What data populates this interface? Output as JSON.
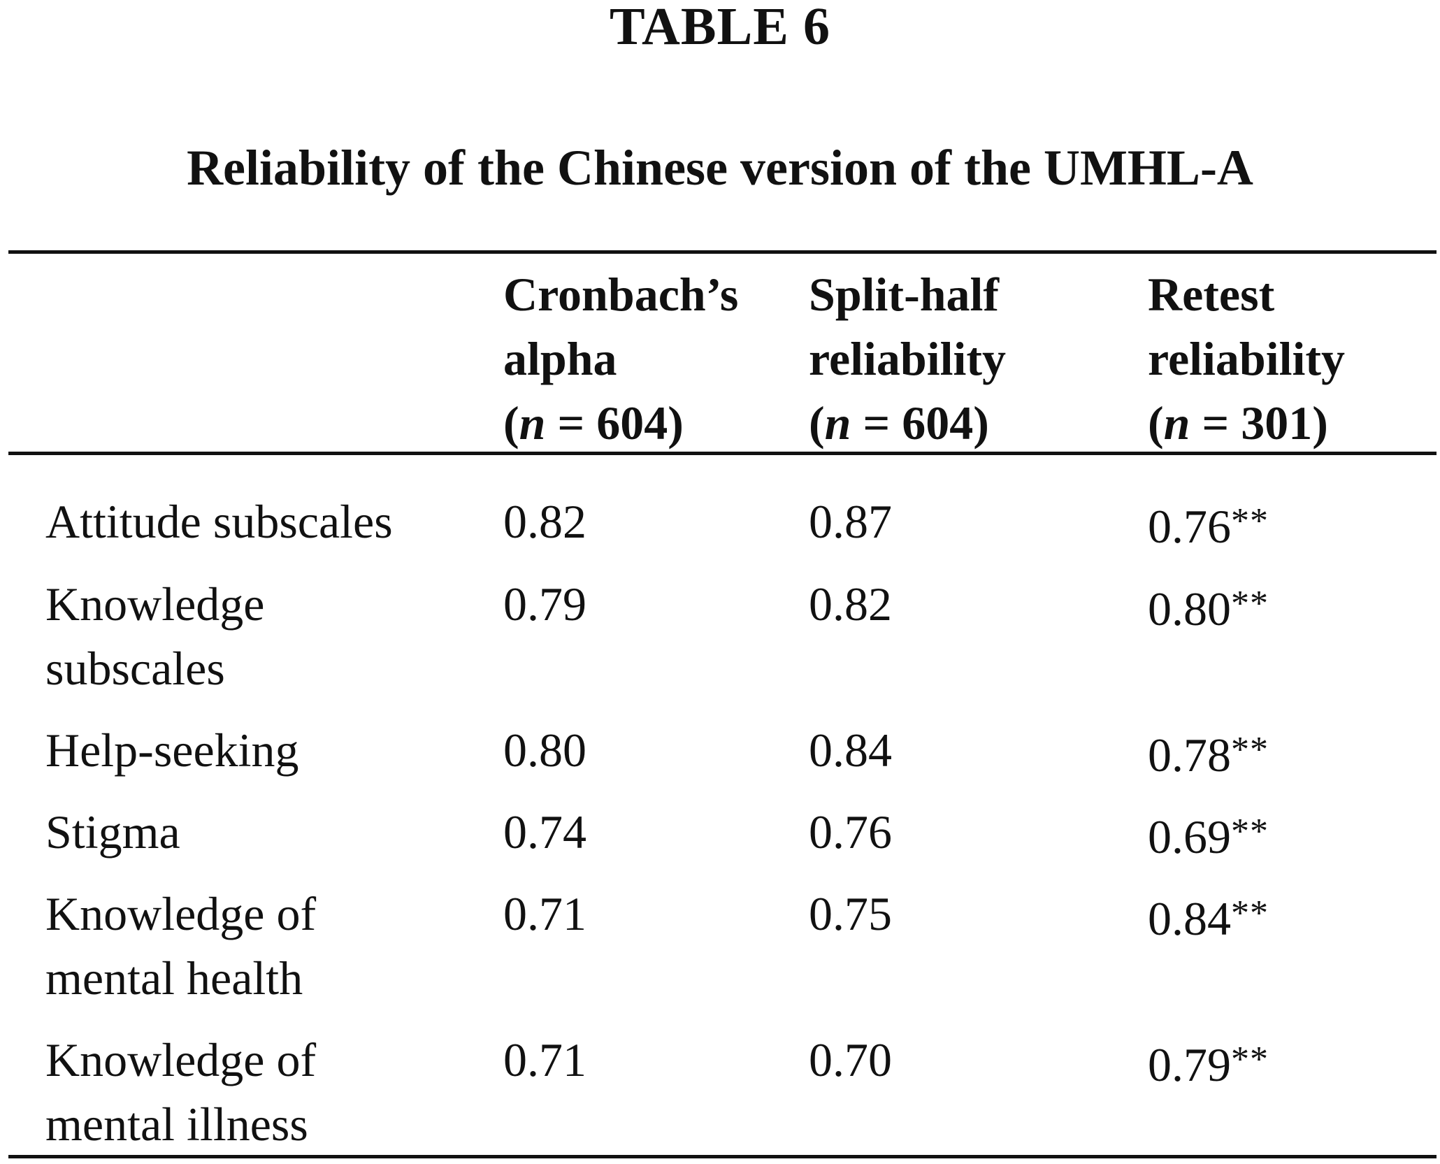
{
  "table": {
    "label": "TABLE 6",
    "caption": "Reliability of the Chinese version of the UMHL-A",
    "columns": [
      {
        "line1": "Cronbach’s",
        "line2": "alpha",
        "n_open": "(",
        "n_var": "n",
        "n_rest": " = 604)"
      },
      {
        "line1": "Split-half",
        "line2": "reliability",
        "n_open": "(",
        "n_var": "n",
        "n_rest": " = 604)"
      },
      {
        "line1": "Retest",
        "line2": "reliability",
        "n_open": "(",
        "n_var": "n",
        "n_rest": " = 301)"
      }
    ],
    "rows": [
      {
        "label_line1": "Attitude subscales",
        "label_line2": "",
        "alpha": "0.82",
        "split_half": "0.87",
        "retest": "0.76",
        "retest_sig": "**"
      },
      {
        "label_line1": "Knowledge",
        "label_line2": "subscales",
        "alpha": "0.79",
        "split_half": "0.82",
        "retest": "0.80",
        "retest_sig": "**"
      },
      {
        "label_line1": "Help-seeking",
        "label_line2": "",
        "alpha": "0.80",
        "split_half": "0.84",
        "retest": "0.78",
        "retest_sig": "**"
      },
      {
        "label_line1": "Stigma",
        "label_line2": "",
        "alpha": "0.74",
        "split_half": "0.76",
        "retest": "0.69",
        "retest_sig": "**"
      },
      {
        "label_line1": "Knowledge of",
        "label_line2": "mental health",
        "alpha": "0.71",
        "split_half": "0.75",
        "retest": "0.84",
        "retest_sig": "**"
      },
      {
        "label_line1": "Knowledge of",
        "label_line2": "mental illness",
        "alpha": "0.71",
        "split_half": "0.70",
        "retest": "0.79",
        "retest_sig": "**"
      }
    ]
  }
}
